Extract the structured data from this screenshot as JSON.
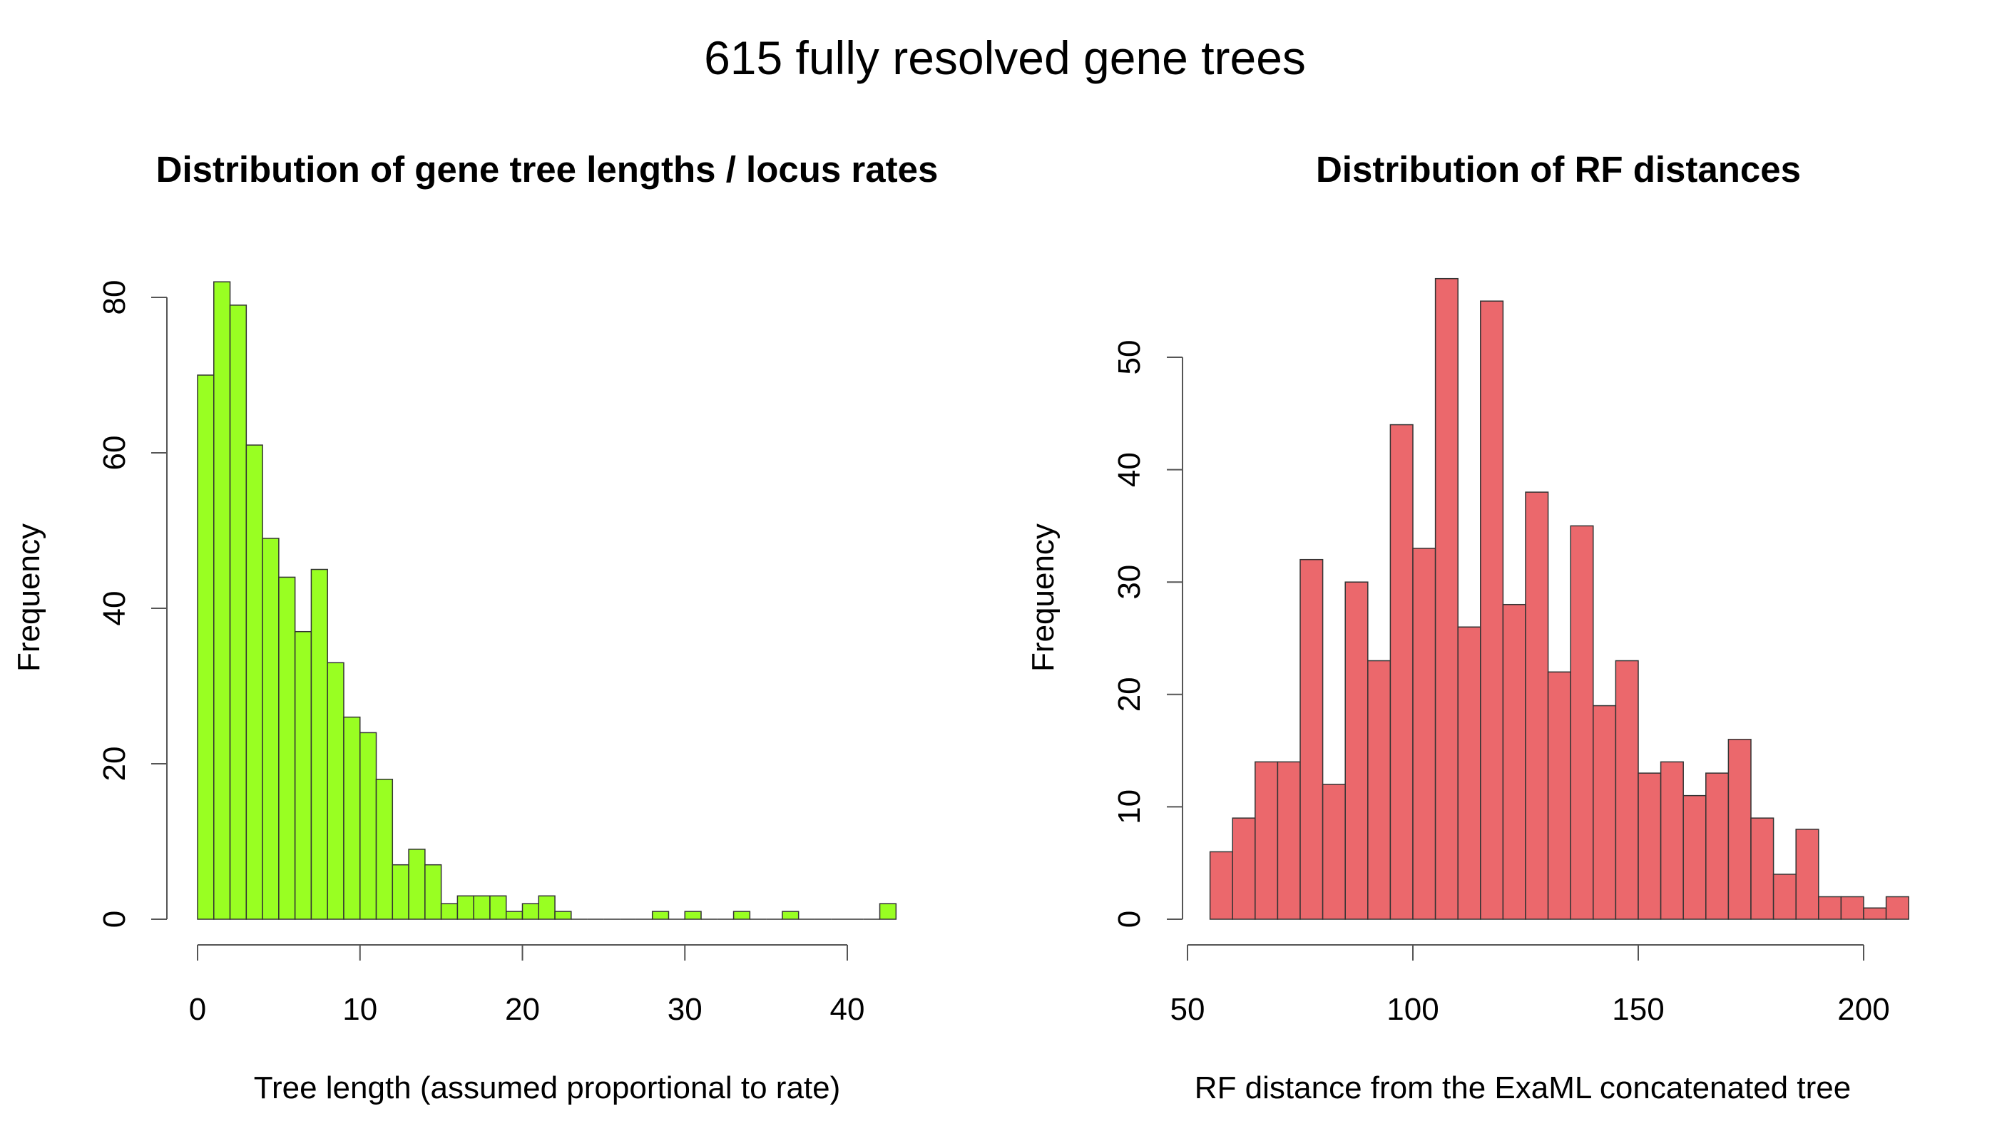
{
  "title": "615 fully resolved gene trees",
  "chart_data": [
    {
      "type": "bar",
      "title": "Distribution of gene tree lengths / locus rates",
      "xlabel": "Tree length (assumed proportional to rate)",
      "ylabel": "Frequency",
      "color": "#99ff22",
      "bin_start": 0,
      "bin_width": 1,
      "values": [
        70,
        82,
        79,
        61,
        49,
        44,
        37,
        45,
        33,
        26,
        24,
        18,
        7,
        9,
        7,
        2,
        3,
        3,
        3,
        1,
        2,
        3,
        1,
        0,
        0,
        0,
        0,
        0,
        1,
        0,
        1,
        0,
        0,
        1,
        0,
        0,
        1,
        0,
        0,
        0,
        0,
        0,
        2
      ],
      "xlim": [
        0,
        43
      ],
      "ylim": [
        0,
        82
      ],
      "xticks": [
        0,
        10,
        20,
        30,
        40
      ],
      "yticks": [
        0,
        20,
        40,
        60,
        80
      ],
      "grid": false
    },
    {
      "type": "bar",
      "title": "Distribution of RF distances",
      "xlabel": "RF distance from the ExaML concatenated tree",
      "ylabel": "Frequency",
      "color": "#eb686c",
      "bin_start": 55,
      "bin_width": 5,
      "values": [
        6,
        9,
        14,
        14,
        32,
        12,
        30,
        23,
        44,
        33,
        57,
        26,
        55,
        28,
        38,
        22,
        35,
        19,
        23,
        13,
        14,
        11,
        13,
        16,
        9,
        4,
        8,
        2,
        2,
        1,
        2
      ],
      "xlim": [
        50,
        210
      ],
      "ylim": [
        0,
        57
      ],
      "xticks": [
        50,
        100,
        150,
        200
      ],
      "yticks": [
        0,
        10,
        20,
        30,
        40,
        50
      ],
      "grid": false
    }
  ]
}
